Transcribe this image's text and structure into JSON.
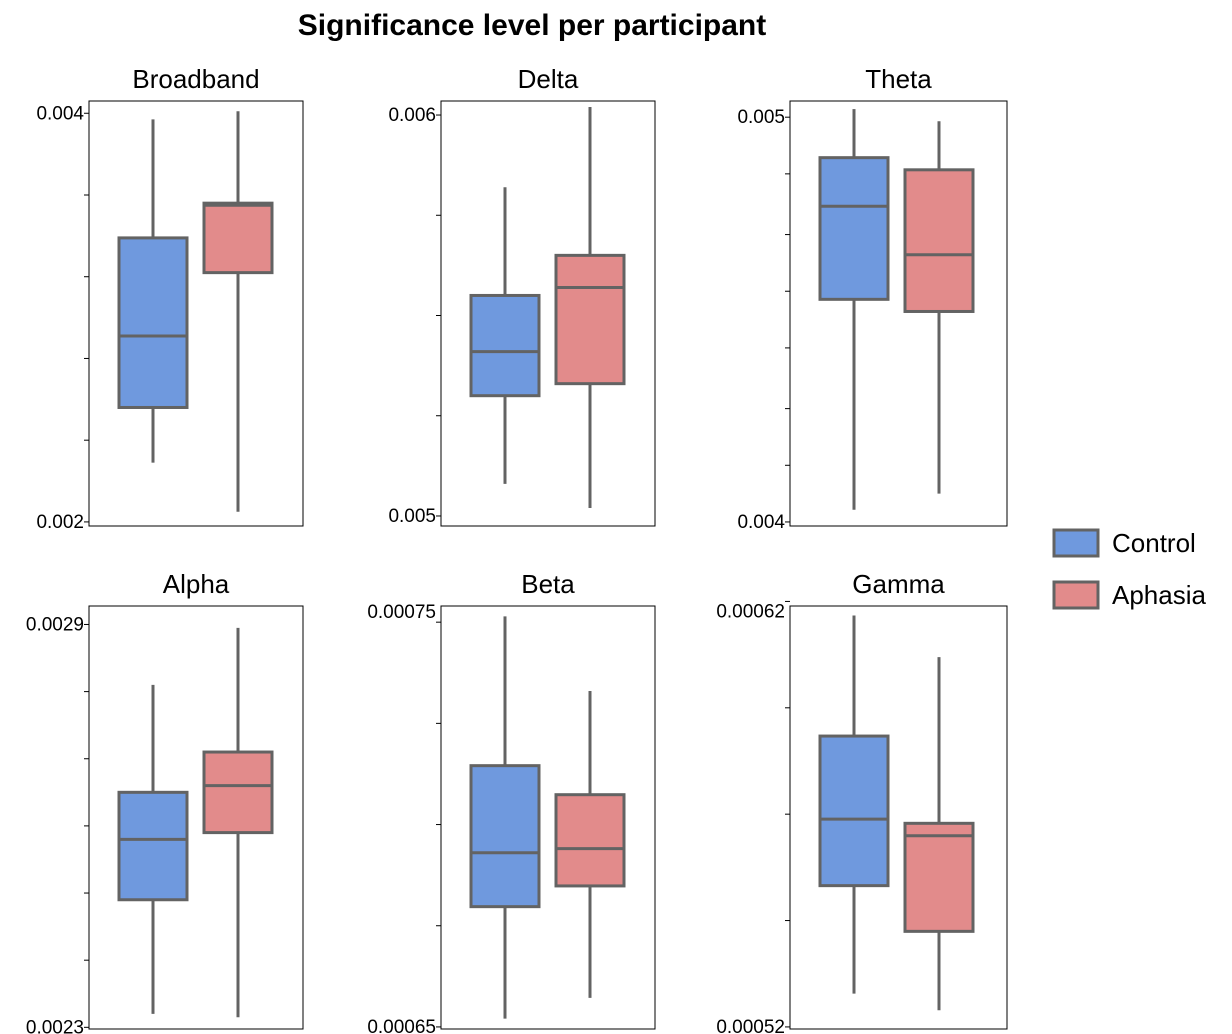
{
  "chart_data": {
    "type": "box",
    "title": "Significance level per participant",
    "colors": {
      "Control": "#6f99de",
      "Aphasia": "#e28b8b",
      "stroke": "#636363"
    },
    "legend": {
      "placement": "right",
      "entries": [
        {
          "name": "Control",
          "color": "#6f99de"
        },
        {
          "name": "Aphasia",
          "color": "#e28b8b"
        }
      ]
    },
    "panels": [
      {
        "name": "Broadband",
        "ylim": [
          0.00198,
          0.00406
        ],
        "tick_labels": [
          "0.002",
          "0.004"
        ],
        "ticks": [
          0.002,
          0.0024,
          0.0028,
          0.0032,
          0.0036,
          0.004
        ],
        "boxes": [
          {
            "group": "Control",
            "min": 0.00229,
            "q1": 0.00256,
            "median": 0.00291,
            "q3": 0.00339,
            "max": 0.00397
          },
          {
            "group": "Aphasia",
            "min": 0.00205,
            "q1": 0.00322,
            "median": 0.00355,
            "q3": 0.00356,
            "max": 0.00401
          }
        ]
      },
      {
        "name": "Delta",
        "ylim": [
          0.004975,
          0.006035
        ],
        "tick_labels": [
          "0.005",
          "0.006"
        ],
        "ticks": [
          0.005,
          0.00525,
          0.0055,
          0.00575,
          0.006
        ],
        "boxes": [
          {
            "group": "Control",
            "min": 0.00508,
            "q1": 0.0053,
            "median": 0.00541,
            "q3": 0.00555,
            "max": 0.00582
          },
          {
            "group": "Aphasia",
            "min": 0.00502,
            "q1": 0.00533,
            "median": 0.00557,
            "q3": 0.00565,
            "max": 0.00602
          }
        ]
      },
      {
        "name": "Theta",
        "ylim": [
          0.00399,
          0.00504
        ],
        "tick_labels": [
          "0.004",
          "0.005"
        ],
        "ticks": [
          0.004,
          0.00414,
          0.00428,
          0.00443,
          0.00457,
          0.00471,
          0.00486,
          0.005
        ],
        "boxes": [
          {
            "group": "Control",
            "min": 0.00403,
            "q1": 0.00455,
            "median": 0.00478,
            "q3": 0.0049,
            "max": 0.00502
          },
          {
            "group": "Aphasia",
            "min": 0.00407,
            "q1": 0.00452,
            "median": 0.00466,
            "q3": 0.00487,
            "max": 0.00499
          }
        ]
      },
      {
        "name": "Alpha",
        "ylim": [
          0.0022975,
          0.0029275
        ],
        "tick_labels": [
          "0.0029",
          "0.0023"
        ],
        "ticks": [
          0.0023,
          0.0024,
          0.0025,
          0.0026,
          0.0027,
          0.0028,
          0.0029
        ],
        "boxes": [
          {
            "group": "Control",
            "min": 0.00232,
            "q1": 0.00249,
            "median": 0.00258,
            "q3": 0.00265,
            "max": 0.00281
          },
          {
            "group": "Aphasia",
            "min": 0.002315,
            "q1": 0.00259,
            "median": 0.00266,
            "q3": 0.00271,
            "max": 0.002895
          }
        ]
      },
      {
        "name": "Beta",
        "ylim": [
          0.0006495,
          0.0007515
        ],
        "tick_labels": [
          "0.00075",
          "0.00065"
        ],
        "ticks": [
          0.00065,
          0.0006744,
          0.0006988,
          0.0007232,
          0.0007476
        ],
        "boxes": [
          {
            "group": "Control",
            "min": 0.000652,
            "q1": 0.000679,
            "median": 0.000692,
            "q3": 0.000713,
            "max": 0.000749
          },
          {
            "group": "Aphasia",
            "min": 0.000657,
            "q1": 0.000684,
            "median": 0.000693,
            "q3": 0.000706,
            "max": 0.000731
          }
        ]
      },
      {
        "name": "Gamma",
        "ylim": [
          0.0005195,
          0.0006213
        ],
        "tick_labels": [
          "0.00062",
          "0.00052"
        ],
        "ticks": [
          0.00052,
          0.0005456,
          0.0005712,
          0.0005968,
          0.0006224
        ],
        "boxes": [
          {
            "group": "Control",
            "min": 0.000528,
            "q1": 0.000554,
            "median": 0.00057,
            "q3": 0.00059,
            "max": 0.000619
          },
          {
            "group": "Aphasia",
            "min": 0.000524,
            "q1": 0.000543,
            "median": 0.000566,
            "q3": 0.000569,
            "max": 0.000609
          }
        ]
      }
    ]
  }
}
